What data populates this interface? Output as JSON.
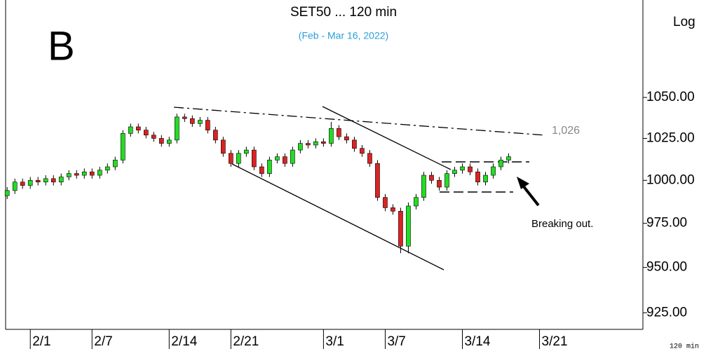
{
  "chart_data": {
    "type": "candlestick",
    "title": "SET50 ... 120 min",
    "subtitle": "(Feb - Mar 16, 2022)",
    "panel_label": "B",
    "scale_label": "Log",
    "log_scale": true,
    "interval_label": "120 min",
    "annotations": {
      "resistance": "1,026",
      "note": "Breaking out."
    },
    "up_color": "#22dd22",
    "down_color": "#dd2222",
    "xlim": [
      -1.6,
      39.7
    ],
    "xticks": [
      {
        "value": 0,
        "label": "2/1"
      },
      {
        "value": 4,
        "label": "2/7"
      },
      {
        "value": 9,
        "label": "2/14"
      },
      {
        "value": 13,
        "label": "2/21"
      },
      {
        "value": 19,
        "label": "3/1"
      },
      {
        "value": 23,
        "label": "3/7"
      },
      {
        "value": 28,
        "label": "3/14"
      },
      {
        "value": 33,
        "label": "3/21"
      }
    ],
    "ylim": [
      916,
      1112
    ],
    "yticks": [
      {
        "value": 925,
        "label": "925.00"
      },
      {
        "value": 950,
        "label": "950.00"
      },
      {
        "value": 975,
        "label": "975.00"
      },
      {
        "value": 1000,
        "label": "1000.00"
      },
      {
        "value": 1025,
        "label": "1025.00"
      },
      {
        "value": 1050,
        "label": "1050.00"
      }
    ],
    "x": [
      -1.5,
      -1,
      -0.5,
      0,
      0.5,
      1,
      1.5,
      2,
      2.5,
      3,
      3.5,
      4,
      4.5,
      5,
      5.5,
      6,
      6.5,
      7,
      7.5,
      8,
      8.5,
      9,
      9.5,
      10,
      10.5,
      11,
      11.5,
      12,
      12.5,
      13,
      13.5,
      14,
      14.5,
      15,
      15.5,
      16,
      16.5,
      17,
      17.5,
      18,
      18.5,
      19,
      19.5,
      20,
      20.5,
      21,
      21.5,
      22,
      22.5,
      23,
      23.5,
      24,
      24.5,
      25,
      25.5,
      26,
      26.5,
      27,
      27.5,
      28,
      28.5,
      29,
      29.5,
      30,
      30.5,
      31
    ],
    "open": [
      991,
      994,
      999,
      997,
      1000,
      999,
      1001,
      999,
      1002,
      1004,
      1003,
      1005,
      1003,
      1006,
      1008,
      1012,
      1028,
      1032,
      1030,
      1027,
      1025,
      1022,
      1024,
      1038,
      1037,
      1034,
      1036,
      1030,
      1024,
      1016,
      1010,
      1016,
      1018,
      1008,
      1004,
      1012,
      1014,
      1010,
      1018,
      1022,
      1021,
      1023,
      1022,
      1031,
      1026,
      1024,
      1019,
      1016,
      1010,
      990,
      984,
      982,
      962,
      985,
      990,
      1003,
      1000,
      996,
      1004,
      1006,
      1008,
      1005,
      999,
      1003,
      1008,
      1012
    ],
    "high": [
      996,
      1001,
      1001,
      1002,
      1002,
      1003,
      1003,
      1004,
      1006,
      1006,
      1007,
      1007,
      1008,
      1010,
      1014,
      1030,
      1034,
      1034,
      1032,
      1029,
      1027,
      1026,
      1040,
      1040,
      1039,
      1038,
      1038,
      1032,
      1026,
      1018,
      1018,
      1020,
      1020,
      1010,
      1014,
      1016,
      1016,
      1020,
      1024,
      1024,
      1025,
      1025,
      1035,
      1033,
      1028,
      1026,
      1021,
      1018,
      1012,
      992,
      986,
      984,
      987,
      992,
      1005,
      1005,
      1002,
      1006,
      1008,
      1010,
      1010,
      1007,
      1005,
      1010,
      1014,
      1016
    ],
    "low": [
      989,
      992,
      995,
      995,
      997,
      997,
      997,
      997,
      1000,
      1001,
      1001,
      1001,
      1001,
      1004,
      1006,
      1010,
      1026,
      1028,
      1025,
      1023,
      1020,
      1020,
      1022,
      1035,
      1032,
      1032,
      1028,
      1022,
      1014,
      1008,
      1008,
      1014,
      1006,
      1002,
      1002,
      1010,
      1008,
      1008,
      1016,
      1019,
      1019,
      1020,
      1020,
      1024,
      1022,
      1017,
      1014,
      1008,
      988,
      982,
      980,
      958,
      958,
      983,
      988,
      998,
      994,
      994,
      1002,
      1004,
      1003,
      997,
      997,
      1001,
      1006,
      1010
    ],
    "close": [
      994,
      999,
      997,
      1000,
      999,
      1001,
      999,
      1002,
      1004,
      1003,
      1005,
      1003,
      1006,
      1008,
      1012,
      1028,
      1032,
      1030,
      1027,
      1025,
      1022,
      1024,
      1038,
      1037,
      1034,
      1036,
      1030,
      1024,
      1016,
      1010,
      1016,
      1018,
      1008,
      1004,
      1012,
      1014,
      1010,
      1018,
      1022,
      1021,
      1023,
      1022,
      1031,
      1026,
      1024,
      1019,
      1016,
      1010,
      990,
      984,
      982,
      962,
      985,
      990,
      1003,
      1000,
      996,
      1004,
      1006,
      1008,
      1005,
      999,
      1003,
      1008,
      1012,
      1014
    ]
  }
}
